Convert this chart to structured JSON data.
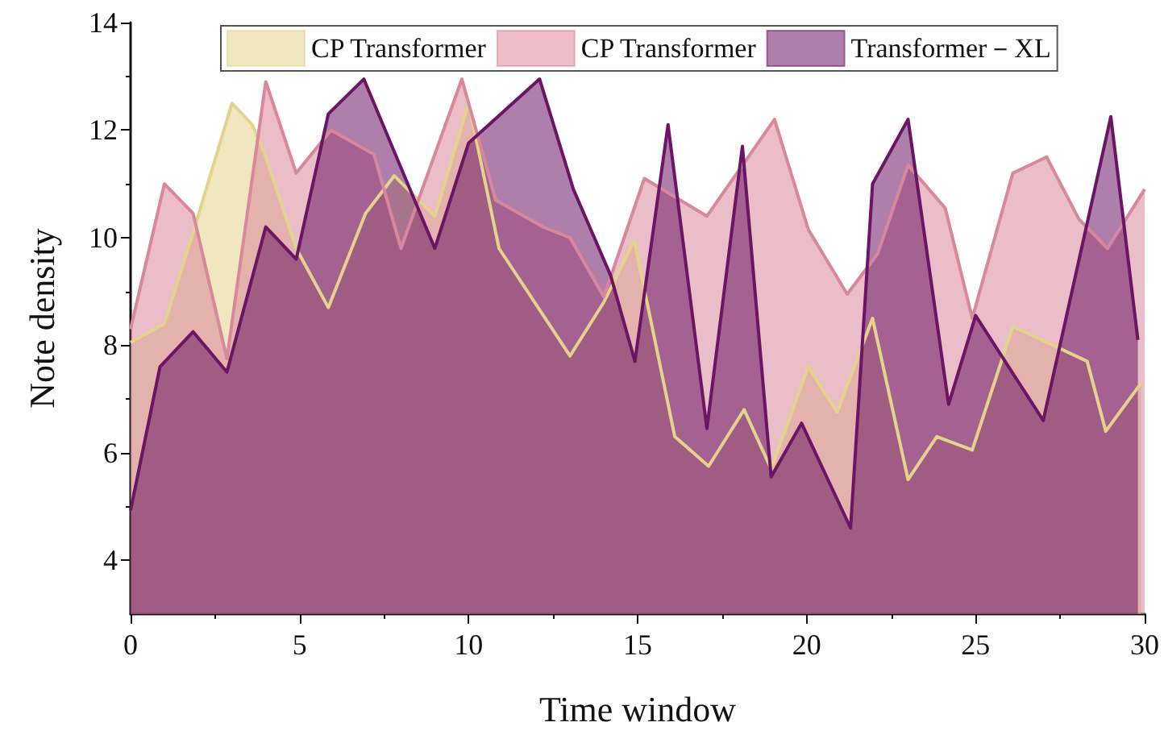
{
  "chart_data": {
    "type": "area",
    "xlabel": "Time window",
    "ylabel": "Note density",
    "xlim": [
      0,
      30
    ],
    "xticks": [
      0,
      5,
      10,
      15,
      20,
      25,
      30
    ],
    "ylim": [
      3,
      14
    ],
    "yticks": [
      4,
      6,
      8,
      10,
      12,
      14
    ],
    "grid": false,
    "legend": "top",
    "marker": "none",
    "line_style": "solid",
    "series": [
      {
        "name": "CP Transformer",
        "color": "#e3d38c",
        "x": [
          0,
          1,
          1.9,
          3,
          3.6,
          4,
          4.9,
          5.85,
          6.95,
          7.8,
          9,
          10,
          10.9,
          13,
          14,
          14.9,
          16.1,
          17.1,
          18.15,
          18.95,
          20.05,
          20.9,
          21.95,
          23,
          23.85,
          24.9,
          26.1,
          28.3,
          28.85,
          29.9
        ],
        "values": [
          8.05,
          8.4,
          10.2,
          12.5,
          12.1,
          11.5,
          9.8,
          8.7,
          10.45,
          11.15,
          10.4,
          12.5,
          9.8,
          7.8,
          8.8,
          9.95,
          6.3,
          5.75,
          6.8,
          5.7,
          7.6,
          6.75,
          8.5,
          5.5,
          6.3,
          6.05,
          8.35,
          7.7,
          6.4,
          7.3
        ]
      },
      {
        "name": "CP Transformer",
        "color": "#d9879b",
        "x": [
          0,
          1,
          1.85,
          2.85,
          4,
          4.9,
          5.93,
          7.2,
          8,
          9.8,
          10.8,
          12.2,
          13,
          14,
          15.2,
          17.05,
          19.05,
          20.05,
          21.2,
          22.1,
          23,
          24.1,
          24.9,
          26.1,
          27.1,
          28.05,
          28.9,
          30
        ],
        "values": [
          8.3,
          11,
          10.45,
          7.75,
          12.9,
          11.2,
          12,
          11.55,
          9.8,
          12.95,
          10.7,
          10.2,
          10,
          8.9,
          11.1,
          10.4,
          12.2,
          10.15,
          8.95,
          9.7,
          11.35,
          10.55,
          8.5,
          11.2,
          11.5,
          10.35,
          9.8,
          10.9
        ]
      },
      {
        "name": "Transformer－XL",
        "color": "#6b1565",
        "x": [
          0,
          0.87,
          1.85,
          2.85,
          4,
          4.9,
          5.85,
          6.9,
          9,
          10,
          12.1,
          13.1,
          14.2,
          14.92,
          15.9,
          17.05,
          18.1,
          18.95,
          19.85,
          21.3,
          21.95,
          23,
          24.2,
          25,
          27,
          29,
          29.8
        ],
        "values": [
          4.93,
          7.6,
          8.25,
          7.5,
          10.2,
          9.6,
          12.3,
          12.95,
          9.8,
          11.76,
          12.95,
          10.9,
          9.3,
          7.7,
          12.1,
          6.45,
          11.7,
          5.55,
          6.55,
          4.6,
          11,
          12.2,
          6.9,
          8.55,
          6.6,
          12.25,
          8.1
        ]
      }
    ]
  }
}
